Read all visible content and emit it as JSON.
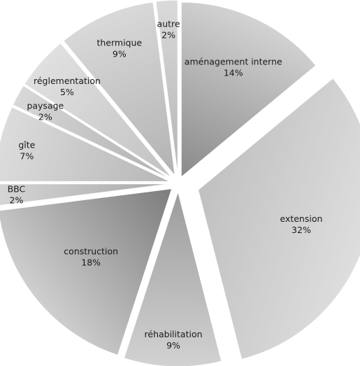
{
  "chart_data": {
    "type": "pie",
    "exploded": true,
    "categories": [
      "aménagement interne",
      "extension",
      "réhabilitation",
      "construction",
      "BBC",
      "gîte",
      "paysage",
      "réglementation",
      "thermique",
      "autre"
    ],
    "values": [
      14,
      32,
      9,
      18,
      2,
      7,
      2,
      5,
      9,
      2
    ],
    "value_labels": [
      "14%",
      "32%",
      "9%",
      "18%",
      "2%",
      "7%",
      "2%",
      "5%",
      "9%",
      "2%"
    ],
    "legend": "none"
  }
}
